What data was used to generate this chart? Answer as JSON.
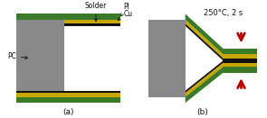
{
  "fig_width": 2.95,
  "fig_height": 1.31,
  "dpi": 100,
  "bg_color": "#ffffff",
  "colors": {
    "gray": "#898989",
    "green": "#3a7a28",
    "yellow": "#c8a800",
    "black": "#111111",
    "white": "#ffffff",
    "red_arrow": "#bb0000"
  },
  "label_a": "(a)",
  "label_b": "(b)",
  "text_PI": "PI",
  "text_Cu": "Cu",
  "text_Solder": "Solder",
  "text_PC": "PC",
  "text_temp": "250°C, 2 s",
  "fontsize_labels": 5.5,
  "fontsize_sub": 6.5
}
